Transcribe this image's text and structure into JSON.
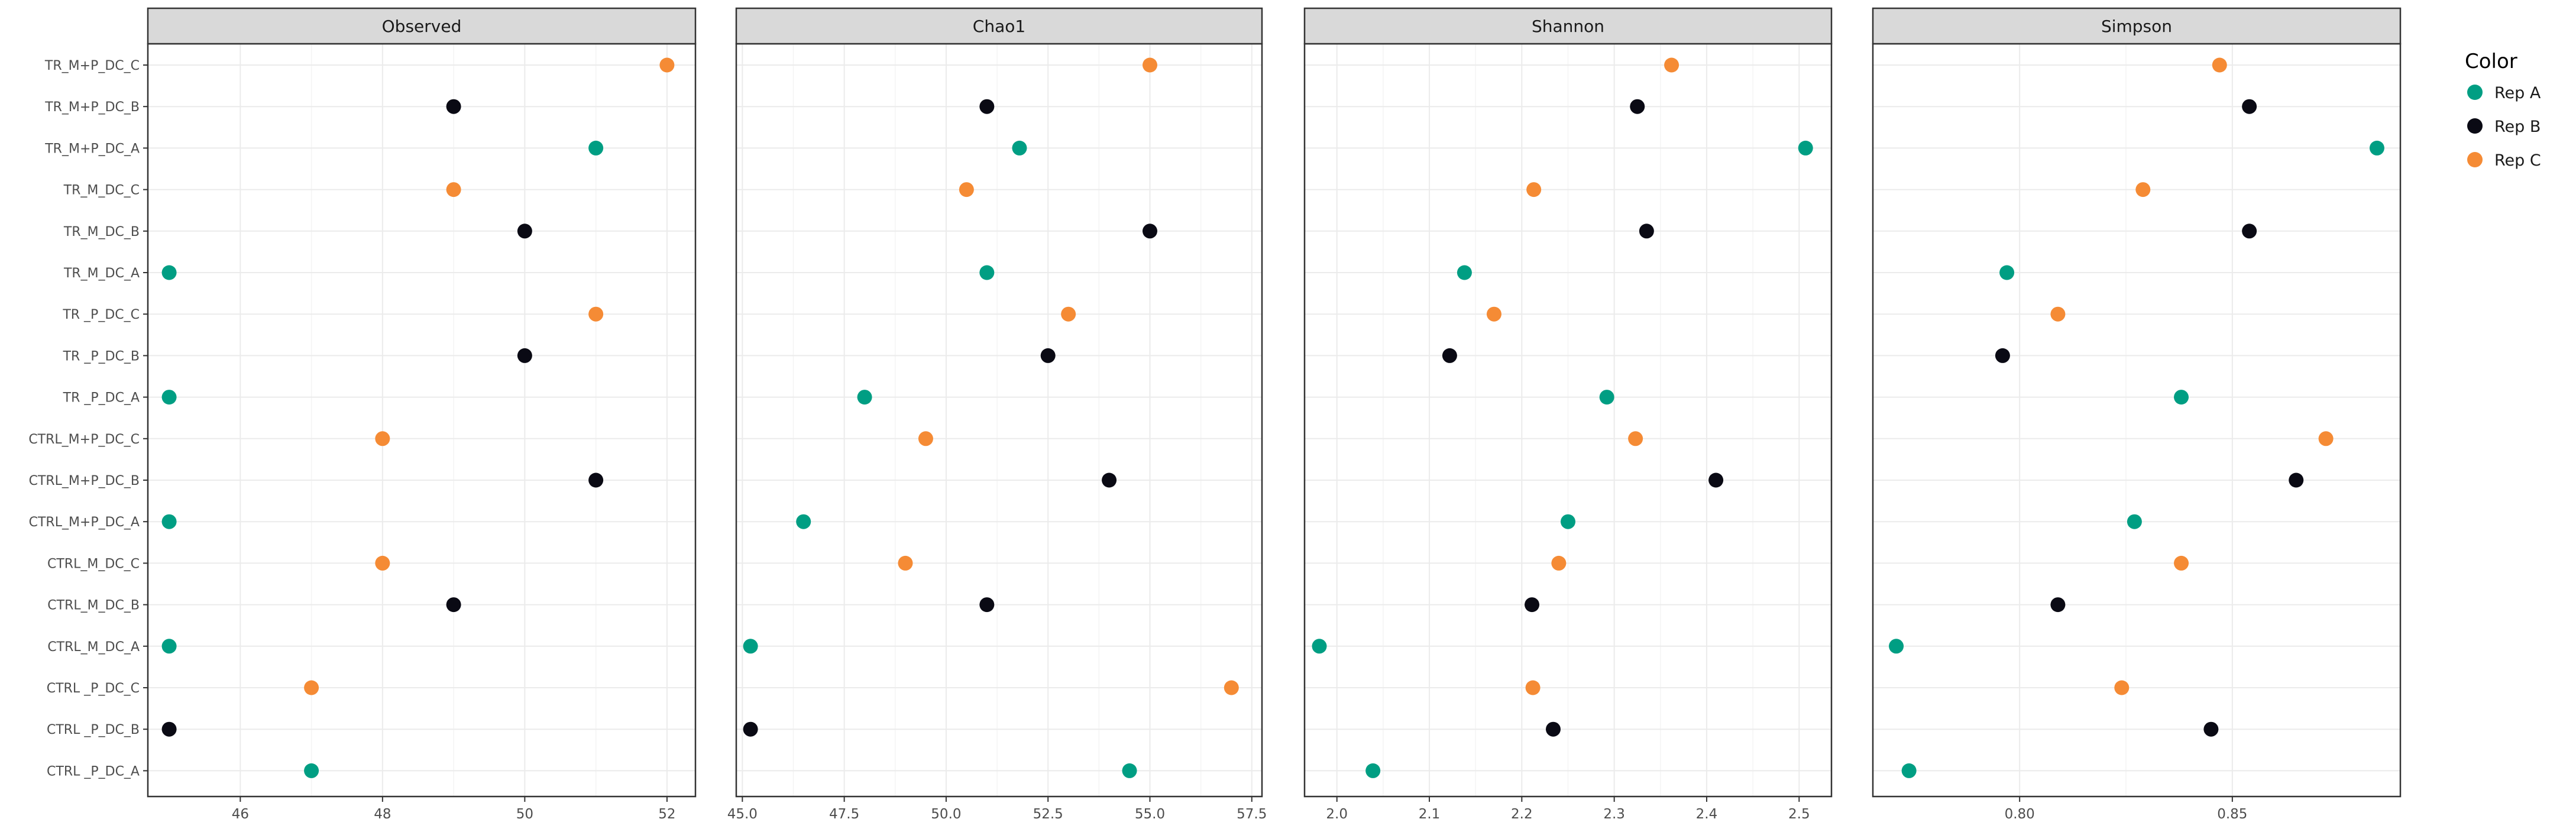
{
  "chart_data": {
    "type": "scatter",
    "samples": [
      "TR_M+P_DC_C",
      "TR_M+P_DC_B",
      "TR_M+P_DC_A",
      "TR_M_DC_C",
      "TR_M_DC_B",
      "TR_M_DC_A",
      "TR _P_DC_C",
      "TR _P_DC_B",
      "TR _P_DC_A",
      "CTRL_M+P_DC_C",
      "CTRL_M+P_DC_B",
      "CTRL_M+P_DC_A",
      "CTRL_M_DC_C",
      "CTRL_M_DC_B",
      "CTRL_M_DC_A",
      "CTRL _P_DC_C",
      "CTRL _P_DC_B",
      "CTRL _P_DC_A"
    ],
    "rep": [
      "Rep C",
      "Rep B",
      "Rep A",
      "Rep C",
      "Rep B",
      "Rep A",
      "Rep C",
      "Rep B",
      "Rep A",
      "Rep C",
      "Rep B",
      "Rep A",
      "Rep C",
      "Rep B",
      "Rep A",
      "Rep C",
      "Rep B",
      "Rep A"
    ],
    "legend": {
      "title": "Color",
      "position": "right",
      "entries": [
        {
          "label": "Rep A",
          "color": "#009E83"
        },
        {
          "label": "Rep B",
          "color": "#0A0A14"
        },
        {
          "label": "Rep C",
          "color": "#F58B35"
        }
      ]
    },
    "panels": [
      {
        "title": "Observed",
        "xlim": [
          44.7,
          52.4
        ],
        "ticks": [
          46,
          48,
          50,
          52
        ],
        "tick_labels": [
          "46",
          "48",
          "50",
          "52"
        ],
        "values": [
          52,
          49,
          51,
          49,
          50,
          45,
          51,
          50,
          45,
          48,
          51,
          45,
          48,
          49,
          45,
          47,
          45,
          47
        ]
      },
      {
        "title": "Chao1",
        "xlim": [
          44.85,
          57.75
        ],
        "ticks": [
          45.0,
          47.5,
          50.0,
          52.5,
          55.0,
          57.5
        ],
        "tick_labels": [
          "45.0",
          "47.5",
          "50.0",
          "52.5",
          "55.0",
          "57.5"
        ],
        "values": [
          55.0,
          51.0,
          51.8,
          50.5,
          55.0,
          51.0,
          53.0,
          52.5,
          48.0,
          49.5,
          54.0,
          46.5,
          49.0,
          51.0,
          45.2,
          57.0,
          45.2,
          54.5
        ]
      },
      {
        "title": "Shannon",
        "xlim": [
          1.965,
          2.535
        ],
        "ticks": [
          2.0,
          2.1,
          2.2,
          2.3,
          2.4,
          2.5
        ],
        "tick_labels": [
          "2.0",
          "2.1",
          "2.2",
          "2.3",
          "2.4",
          "2.5"
        ],
        "values": [
          2.362,
          2.325,
          2.507,
          2.213,
          2.335,
          2.138,
          2.17,
          2.122,
          2.292,
          2.323,
          2.41,
          2.25,
          2.24,
          2.211,
          1.981,
          2.212,
          2.234,
          2.039
        ]
      },
      {
        "title": "Simpson",
        "xlim": [
          0.7655,
          0.8895
        ],
        "ticks": [
          0.8,
          0.85
        ],
        "tick_labels": [
          "0.80",
          "0.85"
        ],
        "values": [
          0.847,
          0.854,
          0.884,
          0.829,
          0.854,
          0.797,
          0.809,
          0.796,
          0.838,
          0.872,
          0.865,
          0.827,
          0.838,
          0.809,
          0.771,
          0.824,
          0.845,
          0.774
        ]
      }
    ],
    "grid": true
  }
}
